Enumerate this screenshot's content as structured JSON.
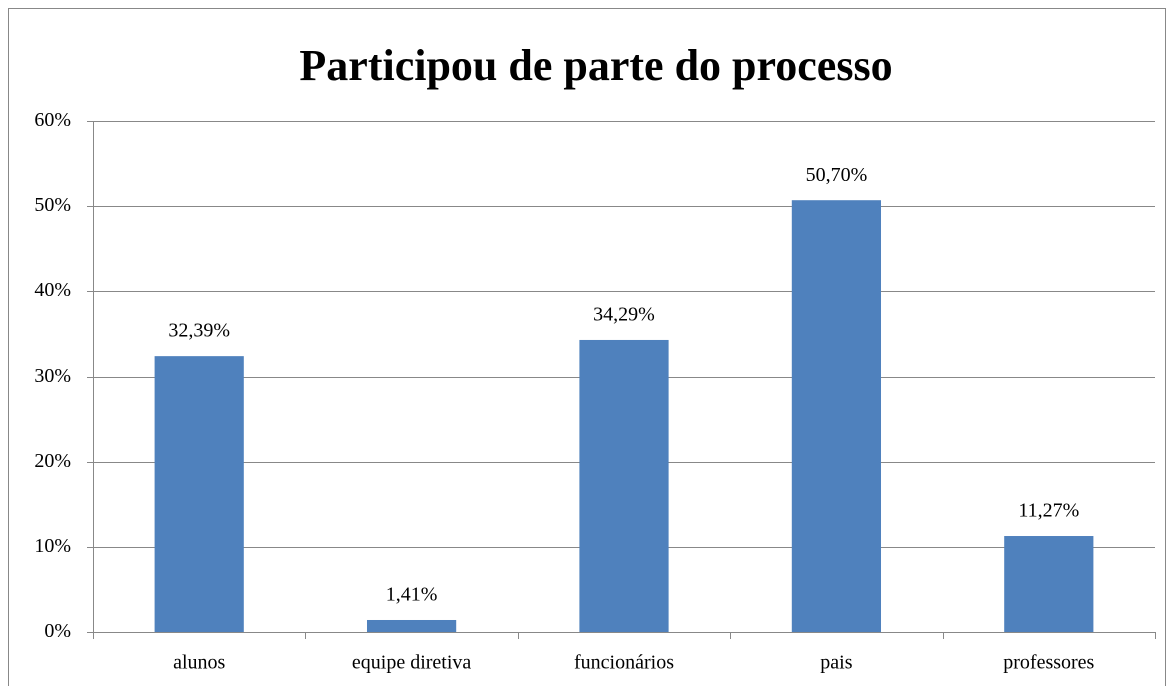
{
  "chart_data": {
    "type": "bar",
    "title": "Participou de parte do processo",
    "categories": [
      "alunos",
      "equipe diretiva",
      "funcionários",
      "pais",
      "professores"
    ],
    "values": [
      32.39,
      1.41,
      34.29,
      50.7,
      11.27
    ],
    "value_labels": [
      "32,39%",
      "1,41%",
      "34,29%",
      "50,70%",
      "11,27%"
    ],
    "color": "#4f81bd",
    "ylim": [
      0,
      60
    ],
    "yticks": [
      {
        "value": 0,
        "label": "0%"
      },
      {
        "value": 10,
        "label": "10%"
      },
      {
        "value": 20,
        "label": "20%"
      },
      {
        "value": 30,
        "label": "30%"
      },
      {
        "value": 40,
        "label": "40%"
      },
      {
        "value": 50,
        "label": "50%"
      },
      {
        "value": 60,
        "label": "60%"
      }
    ],
    "grid": true
  }
}
